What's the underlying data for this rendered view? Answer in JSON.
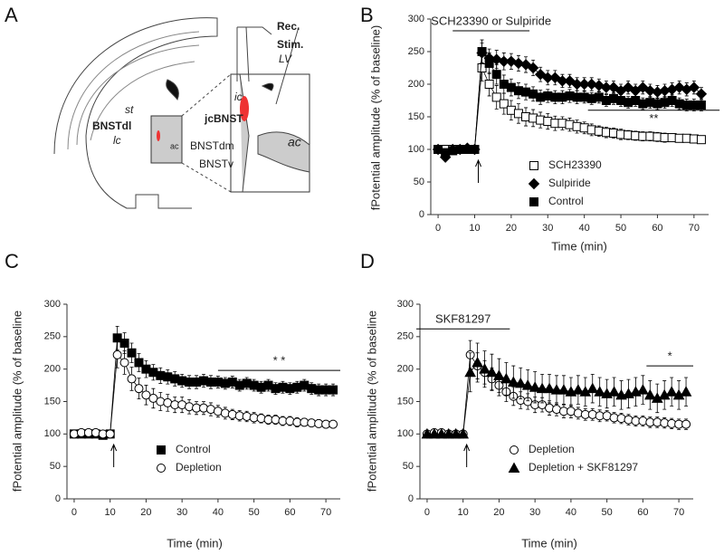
{
  "diagram": {
    "label": "A",
    "rec": "Rec.",
    "stim": "Stim.",
    "lv": "LV",
    "st": "st",
    "bnstdl": "BNSTdl",
    "lc": "lc",
    "ic": "ic",
    "jcbnst": "jcBNST",
    "ac_small": "ac",
    "bnstdm": "BNSTdm",
    "bnstv": "BNSTv",
    "ac_large": "ac"
  },
  "chart_data": [
    {
      "type": "line",
      "label": "B",
      "x_label": "Time (min)",
      "y_label": "fPotential amplitude (% of baseline)",
      "xlim": [
        -2,
        74
      ],
      "ylim": [
        0,
        300
      ],
      "xticks": [
        0,
        10,
        20,
        30,
        40,
        50,
        60,
        70
      ],
      "yticks": [
        0,
        50,
        100,
        150,
        200,
        250,
        300
      ],
      "arrow_x": 11,
      "annotations": [
        {
          "text": "SCH23390 or Sulpiride",
          "x_range": [
            4,
            25
          ],
          "y": 282,
          "text_pos": "above"
        },
        {
          "text": "**",
          "x_range": [
            41,
            77
          ],
          "y": 160,
          "text_pos": "below"
        }
      ],
      "x": [
        0,
        2,
        4,
        6,
        8,
        10,
        12,
        14,
        16,
        18,
        20,
        22,
        24,
        26,
        28,
        30,
        32,
        34,
        36,
        38,
        40,
        42,
        44,
        46,
        48,
        50,
        52,
        54,
        56,
        58,
        60,
        62,
        64,
        66,
        68,
        70,
        72
      ],
      "series": [
        {
          "name": "SCH23390",
          "marker": "square-open",
          "color": "#000000",
          "values": [
            100,
            100,
            100,
            100,
            100,
            100,
            225,
            200,
            180,
            170,
            160,
            155,
            150,
            148,
            145,
            143,
            140,
            140,
            138,
            135,
            133,
            130,
            128,
            126,
            125,
            123,
            122,
            121,
            120,
            120,
            119,
            118,
            118,
            117,
            117,
            116,
            115
          ],
          "errors": [
            3,
            3,
            3,
            3,
            3,
            3,
            20,
            18,
            18,
            16,
            15,
            15,
            14,
            13,
            12,
            12,
            11,
            10,
            10,
            10,
            9,
            9,
            8,
            8,
            8,
            8,
            7,
            7,
            7,
            7,
            7,
            7,
            6,
            6,
            6,
            6,
            6
          ]
        },
        {
          "name": "Sulpiride",
          "marker": "diamond",
          "color": "#000000",
          "values": [
            100,
            88,
            100,
            100,
            102,
            100,
            248,
            240,
            238,
            235,
            235,
            232,
            230,
            225,
            215,
            210,
            210,
            205,
            205,
            200,
            200,
            200,
            198,
            195,
            195,
            190,
            195,
            190,
            195,
            190,
            188,
            190,
            192,
            195,
            192,
            195,
            185
          ],
          "errors": [
            3,
            4,
            3,
            3,
            3,
            3,
            15,
            14,
            14,
            13,
            12,
            12,
            12,
            12,
            11,
            11,
            11,
            10,
            10,
            10,
            10,
            10,
            10,
            10,
            10,
            10,
            10,
            10,
            10,
            10,
            10,
            10,
            10,
            10,
            10,
            10,
            10
          ]
        },
        {
          "name": "Control",
          "marker": "square",
          "color": "#000000",
          "values": [
            100,
            95,
            98,
            100,
            100,
            100,
            250,
            232,
            215,
            200,
            195,
            190,
            188,
            185,
            180,
            182,
            180,
            180,
            182,
            180,
            180,
            178,
            180,
            175,
            178,
            175,
            172,
            175,
            170,
            172,
            170,
            172,
            175,
            170,
            168,
            168,
            168
          ],
          "errors": [
            3,
            3,
            3,
            3,
            3,
            3,
            18,
            16,
            15,
            14,
            13,
            12,
            12,
            11,
            11,
            10,
            10,
            10,
            10,
            10,
            9,
            9,
            9,
            9,
            9,
            9,
            9,
            9,
            9,
            9,
            9,
            9,
            9,
            9,
            9,
            9,
            9
          ]
        }
      ]
    },
    {
      "type": "line",
      "label": "C",
      "x_label": "Time (min)",
      "y_label": "fPotential amplitude (% of baseline",
      "xlim": [
        -2,
        74
      ],
      "ylim": [
        0,
        300
      ],
      "xticks": [
        0,
        10,
        20,
        30,
        40,
        50,
        60,
        70
      ],
      "yticks": [
        0,
        50,
        100,
        150,
        200,
        250,
        300
      ],
      "arrow_x": 11,
      "annotations": [
        {
          "text": "* *",
          "x_range": [
            40,
            74
          ],
          "y": 198,
          "text_pos": "above"
        }
      ],
      "x": [
        0,
        2,
        4,
        6,
        8,
        10,
        12,
        14,
        16,
        18,
        20,
        22,
        24,
        26,
        28,
        30,
        32,
        34,
        36,
        38,
        40,
        42,
        44,
        46,
        48,
        50,
        52,
        54,
        56,
        58,
        60,
        62,
        64,
        66,
        68,
        70,
        72
      ],
      "series": [
        {
          "name": "Control",
          "marker": "square",
          "color": "#000000",
          "values": [
            100,
            100,
            100,
            100,
            98,
            100,
            248,
            240,
            225,
            210,
            200,
            195,
            190,
            188,
            185,
            182,
            180,
            180,
            182,
            180,
            180,
            178,
            180,
            175,
            178,
            175,
            172,
            175,
            170,
            172,
            170,
            172,
            175,
            170,
            168,
            168,
            168
          ],
          "errors": [
            3,
            3,
            3,
            3,
            3,
            3,
            18,
            16,
            15,
            14,
            13,
            12,
            12,
            11,
            11,
            10,
            10,
            10,
            10,
            10,
            9,
            9,
            9,
            9,
            9,
            9,
            9,
            9,
            9,
            9,
            9,
            9,
            9,
            9,
            9,
            9,
            9
          ]
        },
        {
          "name": "Depletion",
          "marker": "circle-open",
          "color": "#000000",
          "values": [
            100,
            102,
            102,
            102,
            100,
            100,
            222,
            210,
            185,
            170,
            160,
            155,
            150,
            148,
            145,
            145,
            142,
            140,
            140,
            138,
            135,
            132,
            130,
            128,
            127,
            125,
            124,
            122,
            122,
            120,
            120,
            118,
            118,
            117,
            116,
            115,
            115
          ],
          "errors": [
            3,
            3,
            3,
            3,
            3,
            3,
            20,
            18,
            18,
            16,
            15,
            15,
            14,
            13,
            12,
            12,
            11,
            10,
            10,
            10,
            9,
            9,
            8,
            8,
            8,
            8,
            7,
            7,
            7,
            7,
            7,
            7,
            6,
            6,
            6,
            6,
            6
          ]
        }
      ]
    },
    {
      "type": "line",
      "label": "D",
      "x_label": "Time (min)",
      "y_label": "fPotential amplitude (% of baseline",
      "xlim": [
        -2,
        74
      ],
      "ylim": [
        0,
        300
      ],
      "xticks": [
        0,
        10,
        20,
        30,
        40,
        50,
        60,
        70
      ],
      "yticks": [
        0,
        50,
        100,
        150,
        200,
        250,
        300
      ],
      "arrow_x": 11,
      "annotations": [
        {
          "text": "SKF81297",
          "x_range": [
            -3,
            23
          ],
          "y": 262,
          "text_pos": "above"
        },
        {
          "text": "*",
          "x_range": [
            61,
            74
          ],
          "y": 205,
          "text_pos": "above"
        }
      ],
      "x": [
        0,
        2,
        4,
        6,
        8,
        10,
        12,
        14,
        16,
        18,
        20,
        22,
        24,
        26,
        28,
        30,
        32,
        34,
        36,
        38,
        40,
        42,
        44,
        46,
        48,
        50,
        52,
        54,
        56,
        58,
        60,
        62,
        64,
        66,
        68,
        70,
        72
      ],
      "series": [
        {
          "name": "Depletion",
          "marker": "circle-open",
          "color": "#000000",
          "values": [
            100,
            102,
            102,
            100,
            100,
            100,
            222,
            205,
            195,
            185,
            175,
            165,
            158,
            152,
            150,
            145,
            145,
            140,
            138,
            135,
            135,
            132,
            130,
            130,
            128,
            128,
            125,
            124,
            122,
            120,
            120,
            118,
            118,
            117,
            116,
            115,
            115
          ],
          "errors": [
            3,
            3,
            3,
            3,
            3,
            3,
            22,
            20,
            18,
            17,
            16,
            15,
            14,
            13,
            12,
            12,
            11,
            11,
            10,
            10,
            10,
            9,
            9,
            9,
            9,
            8,
            8,
            8,
            8,
            8,
            8,
            8,
            8,
            8,
            8,
            8,
            8
          ]
        },
        {
          "name": "Depletion + SKF81297",
          "marker": "triangle",
          "color": "#000000",
          "values": [
            100,
            100,
            100,
            100,
            100,
            100,
            195,
            210,
            200,
            195,
            190,
            185,
            180,
            178,
            175,
            172,
            170,
            170,
            168,
            168,
            165,
            168,
            165,
            170,
            165,
            162,
            165,
            160,
            162,
            165,
            168,
            160,
            155,
            160,
            165,
            160,
            165
          ],
          "errors": [
            3,
            3,
            3,
            3,
            3,
            3,
            30,
            30,
            28,
            28,
            26,
            25,
            25,
            24,
            24,
            24,
            22,
            22,
            22,
            22,
            22,
            22,
            22,
            22,
            22,
            22,
            22,
            22,
            22,
            22,
            22,
            22,
            22,
            22,
            22,
            22,
            22
          ]
        }
      ]
    }
  ]
}
